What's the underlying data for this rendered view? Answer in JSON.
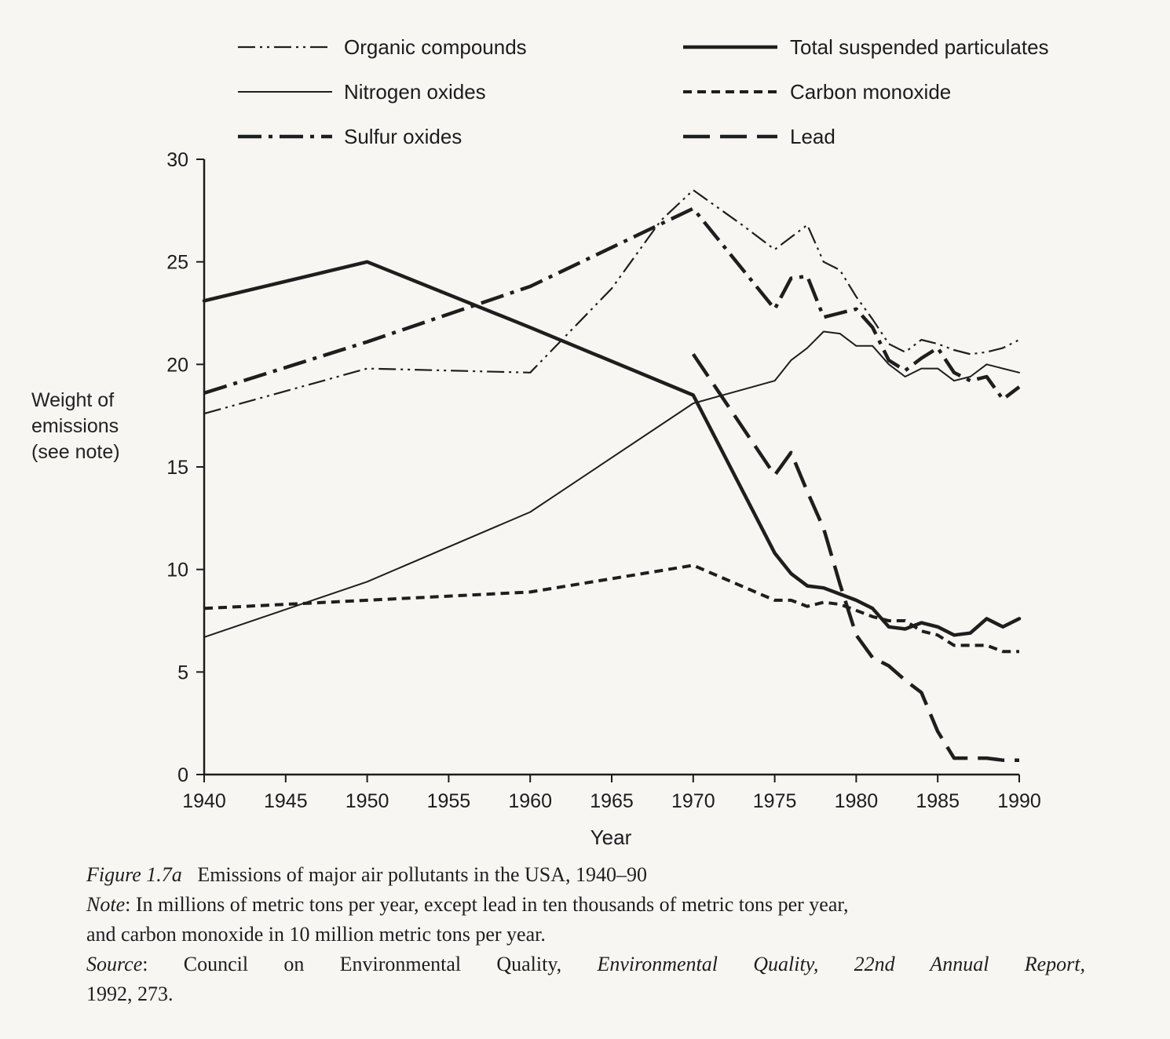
{
  "chart_data": {
    "type": "line",
    "xlabel": "Year",
    "ylabel": [
      "Weight of",
      "emissions",
      "(see note)"
    ],
    "xlim": [
      1940,
      1990
    ],
    "ylim": [
      0,
      30
    ],
    "x_ticks": [
      "1940",
      "1945",
      "1950",
      "1955",
      "1960",
      "1965",
      "1970",
      "1975",
      "1980",
      "1985",
      "1990"
    ],
    "y_ticks": [
      "0",
      "5",
      "10",
      "15",
      "20",
      "25",
      "30"
    ],
    "grid": false,
    "legend_position": "top",
    "series": [
      {
        "name": "Organic compounds",
        "style": "dash-dot-dot",
        "x": [
          1940,
          1950,
          1960,
          1965,
          1968,
          1970,
          1973,
          1975,
          1976,
          1977,
          1978,
          1979,
          1980,
          1981,
          1982,
          1983,
          1984,
          1985,
          1986,
          1987,
          1988,
          1989,
          1990
        ],
        "values": [
          17.6,
          19.8,
          19.6,
          23.7,
          27.0,
          28.5,
          26.8,
          25.6,
          26.2,
          26.8,
          25.0,
          24.6,
          23.3,
          22.2,
          21.0,
          20.6,
          21.2,
          21.0,
          20.7,
          20.5,
          20.6,
          20.8,
          21.2
        ]
      },
      {
        "name": "Nitrogen oxides",
        "style": "solid-thin",
        "x": [
          1940,
          1950,
          1960,
          1970,
          1975,
          1976,
          1977,
          1978,
          1979,
          1980,
          1981,
          1982,
          1983,
          1984,
          1985,
          1986,
          1987,
          1988,
          1989,
          1990
        ],
        "values": [
          6.7,
          9.4,
          12.8,
          18.1,
          19.2,
          20.2,
          20.8,
          21.6,
          21.5,
          20.9,
          20.9,
          20.0,
          19.4,
          19.8,
          19.8,
          19.2,
          19.4,
          20.0,
          19.8,
          19.6
        ]
      },
      {
        "name": "Sulfur oxides",
        "style": "dash-dot-thick",
        "x": [
          1940,
          1950,
          1960,
          1970,
          1975,
          1976,
          1977,
          1978,
          1979,
          1980,
          1981,
          1982,
          1983,
          1984,
          1985,
          1986,
          1987,
          1988,
          1989,
          1990
        ],
        "values": [
          18.6,
          21.1,
          23.8,
          27.6,
          22.7,
          24.2,
          24.3,
          22.3,
          22.5,
          22.7,
          21.8,
          20.2,
          19.7,
          20.3,
          20.8,
          19.6,
          19.2,
          19.4,
          18.3,
          18.9
        ]
      },
      {
        "name": "Total suspended particulates",
        "style": "solid-thick",
        "x": [
          1940,
          1950,
          1960,
          1970,
          1975,
          1976,
          1977,
          1978,
          1979,
          1980,
          1981,
          1982,
          1983,
          1984,
          1985,
          1986,
          1987,
          1988,
          1989,
          1990
        ],
        "values": [
          23.1,
          25.0,
          21.8,
          18.5,
          10.8,
          9.8,
          9.2,
          9.1,
          8.8,
          8.5,
          8.1,
          7.2,
          7.1,
          7.4,
          7.2,
          6.8,
          6.9,
          7.6,
          7.2,
          7.6
        ]
      },
      {
        "name": "Carbon monoxide",
        "style": "short-dash",
        "x": [
          1940,
          1950,
          1960,
          1970,
          1975,
          1976,
          1977,
          1978,
          1979,
          1980,
          1981,
          1982,
          1983,
          1984,
          1985,
          1986,
          1987,
          1988,
          1989,
          1990
        ],
        "values": [
          8.1,
          8.5,
          8.9,
          10.2,
          8.5,
          8.5,
          8.2,
          8.4,
          8.3,
          8.0,
          7.7,
          7.5,
          7.5,
          7.0,
          6.8,
          6.3,
          6.3,
          6.3,
          6.0,
          6.0
        ]
      },
      {
        "name": "Lead",
        "style": "long-dash",
        "x": [
          1970,
          1975,
          1976,
          1977,
          1978,
          1979,
          1980,
          1981,
          1982,
          1983,
          1984,
          1985,
          1986,
          1987,
          1988,
          1989,
          1990
        ],
        "values": [
          20.5,
          14.6,
          15.7,
          13.8,
          12.0,
          9.3,
          6.8,
          5.7,
          5.3,
          4.6,
          4.0,
          2.1,
          0.8,
          0.8,
          0.8,
          0.7,
          0.7
        ]
      }
    ]
  },
  "caption": {
    "figure_label": "Figure 1.7a",
    "figure_title": "Emissions of major air pollutants in the USA, 1940–90",
    "note_label": "Note",
    "note_text": "In millions of metric tons per year, except lead in ten thousands of metric tons per year,",
    "note_text_2": "and carbon monoxide in 10 million metric tons per year.",
    "source_label": "Source",
    "source_text": "Council on Environmental Quality,",
    "source_title": "Environmental Quality, 22nd Annual Report,",
    "source_text_2": "1992, 273."
  }
}
